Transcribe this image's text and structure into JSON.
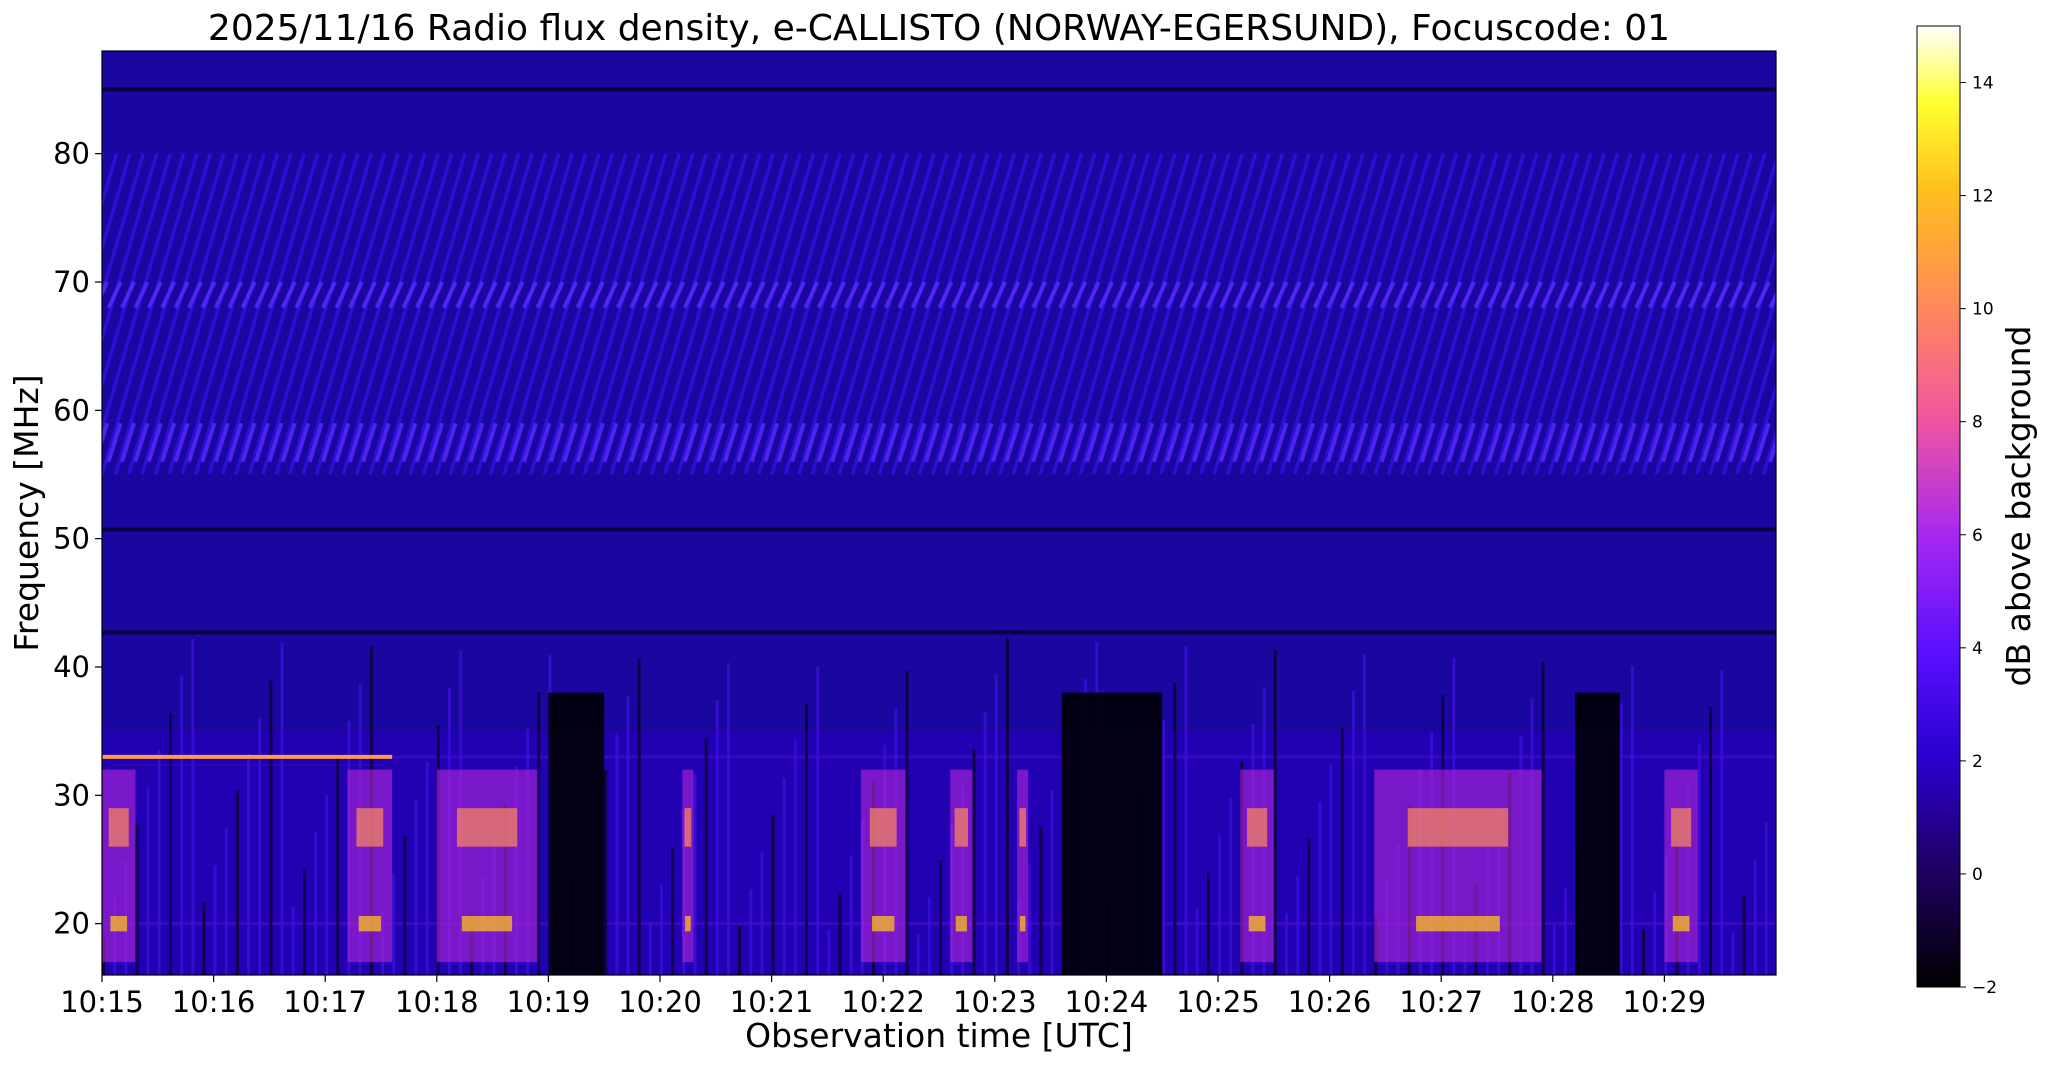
{
  "chart_data": {
    "type": "heatmap",
    "title": "2025/11/16  Radio flux density, e-CALLISTO (NORWAY-EGERSUND), Focuscode: 01",
    "xlabel": "Observation time [UTC]",
    "ylabel": "Frequency [MHz]",
    "x_tick_labels": [
      "10:15",
      "10:16",
      "10:17",
      "10:18",
      "10:19",
      "10:20",
      "10:21",
      "10:22",
      "10:23",
      "10:24",
      "10:25",
      "10:26",
      "10:27",
      "10:28",
      "10:29"
    ],
    "x_range_minutes": [
      0,
      15
    ],
    "y_ticks": [
      20,
      30,
      40,
      50,
      60,
      70,
      80
    ],
    "ylim": [
      16,
      88
    ],
    "colorbar": {
      "label": "dB above background",
      "colormap": "gnuplot2",
      "range": [
        -2,
        15
      ],
      "ticks": [
        -2,
        0,
        2,
        4,
        6,
        8,
        10,
        12,
        14
      ]
    },
    "features": {
      "horizontal_lines_mhz": [
        85,
        50.7,
        42.7,
        33,
        20
      ],
      "diagonal_stripe_bands_mhz": [
        [
          55,
          80
        ]
      ],
      "low_band_activity_mhz": [
        16,
        35
      ],
      "quiet_gaps_minutes": [
        [
          4.0,
          4.5
        ],
        [
          8.6,
          9.5
        ],
        [
          13.2,
          13.6
        ]
      ],
      "bright_bursts_minutes": [
        [
          0.0,
          0.3
        ],
        [
          2.2,
          2.6
        ],
        [
          3.0,
          3.9
        ],
        [
          5.2,
          5.3
        ],
        [
          6.8,
          7.2
        ],
        [
          7.6,
          7.8
        ],
        [
          8.2,
          8.3
        ],
        [
          10.2,
          10.5
        ],
        [
          11.4,
          12.9
        ],
        [
          14.0,
          14.3
        ]
      ]
    },
    "grid": false
  }
}
